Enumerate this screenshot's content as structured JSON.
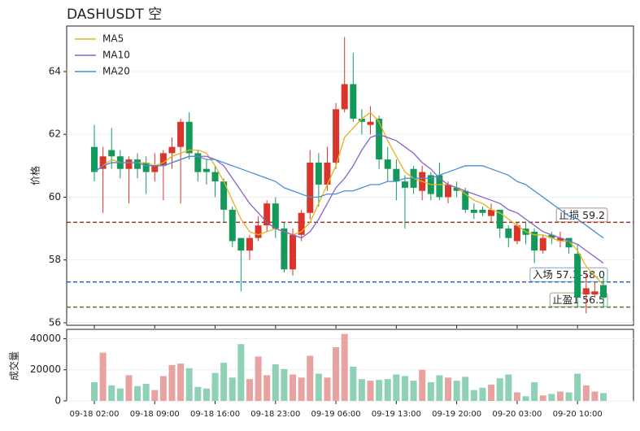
{
  "chart_data": [
    {
      "type": "candlestick",
      "title": "DASHUSDT 空",
      "ylabel": "价格",
      "categories": [
        "09-18 02:00",
        null,
        null,
        null,
        null,
        null,
        null,
        "09-18 09:00",
        null,
        null,
        null,
        null,
        null,
        null,
        "09-18 16:00",
        null,
        null,
        null,
        null,
        null,
        null,
        "09-18 23:00",
        null,
        null,
        null,
        null,
        null,
        null,
        "09-19 06:00",
        null,
        null,
        null,
        null,
        null,
        null,
        "09-19 13:00",
        null,
        null,
        null,
        null,
        null,
        null,
        "09-19 20:00",
        null,
        null,
        null,
        null,
        null,
        null,
        "09-20 03:00",
        null,
        null,
        null,
        null,
        null,
        null,
        "09-20 10:00",
        null,
        null,
        null
      ],
      "open": [
        61.6,
        60.9,
        61.5,
        61.3,
        60.9,
        61.2,
        61.1,
        60.8,
        61.0,
        61.4,
        61.6,
        62.4,
        61.4,
        60.9,
        60.8,
        60.5,
        59.6,
        58.7,
        58.3,
        58.7,
        59.1,
        59.8,
        59.0,
        57.7,
        58.8,
        59.5,
        61.1,
        60.4,
        61.1,
        62.8,
        63.6,
        62.5,
        62.3,
        62.5,
        61.2,
        60.9,
        60.5,
        60.9,
        60.2,
        60.7,
        60.7,
        60.0,
        60.3,
        60.2,
        59.6,
        59.6,
        59.4,
        59.6,
        59.0,
        58.6,
        59.0,
        58.9,
        58.3,
        58.8,
        58.6,
        58.7,
        58.2,
        56.9,
        56.9,
        57.2
      ],
      "high": [
        62.3,
        61.6,
        62.2,
        61.5,
        61.3,
        61.4,
        61.3,
        61.4,
        61.5,
        61.9,
        62.5,
        62.7,
        61.5,
        61.2,
        61.0,
        60.6,
        59.7,
        58.7,
        58.8,
        59.4,
        59.9,
        60.0,
        59.2,
        59.0,
        59.6,
        61.5,
        61.4,
        61.6,
        63.0,
        65.1,
        64.6,
        62.8,
        62.9,
        62.6,
        61.6,
        61.2,
        60.7,
        61.0,
        61.0,
        60.8,
        61.1,
        60.5,
        60.5,
        60.3,
        59.8,
        59.7,
        59.8,
        59.6,
        59.1,
        59.2,
        59.2,
        59.0,
        58.8,
        58.9,
        58.9,
        58.7,
        58.5,
        57.6,
        57.3,
        57.5
      ],
      "low": [
        60.5,
        59.5,
        60.9,
        60.6,
        59.8,
        60.6,
        60.1,
        60.5,
        59.9,
        60.9,
        59.8,
        61.2,
        60.5,
        60.4,
        60.0,
        59.2,
        58.4,
        57.0,
        58.0,
        58.6,
        58.9,
        58.7,
        57.6,
        57.5,
        58.6,
        59.3,
        59.7,
        60.2,
        60.9,
        62.7,
        62.4,
        62.0,
        62.0,
        60.9,
        60.5,
        59.9,
        59.0,
        60.1,
        59.9,
        59.9,
        59.9,
        59.8,
        60.0,
        59.5,
        59.3,
        59.4,
        59.2,
        58.7,
        58.4,
        58.5,
        58.5,
        57.9,
        58.2,
        58.5,
        58.4,
        58.2,
        56.5,
        56.3,
        56.8,
        56.5
      ],
      "close": [
        60.8,
        61.3,
        61.3,
        60.9,
        61.2,
        60.9,
        60.8,
        61.0,
        61.4,
        61.6,
        62.4,
        61.4,
        60.8,
        60.8,
        60.5,
        59.6,
        58.6,
        58.3,
        58.7,
        59.1,
        59.8,
        59.0,
        57.7,
        58.8,
        59.5,
        61.1,
        60.4,
        61.1,
        62.8,
        63.6,
        62.5,
        62.4,
        62.4,
        61.2,
        60.9,
        60.5,
        60.3,
        60.3,
        60.8,
        60.1,
        60.0,
        60.4,
        60.2,
        59.6,
        59.5,
        59.5,
        59.6,
        59.0,
        58.7,
        59.1,
        58.8,
        58.3,
        58.7,
        58.7,
        58.7,
        58.4,
        56.8,
        57.1,
        57.0,
        56.8
      ],
      "up_color": "#d9352a",
      "down_color": "#13995a",
      "series": [
        {
          "name": "MA5",
          "color": "#e8b21a",
          "values": [
            60.8,
            61.0,
            61.2,
            61.1,
            61.1,
            61.1,
            61.1,
            61.0,
            61.1,
            61.3,
            61.4,
            61.5,
            61.5,
            61.4,
            61.0,
            60.5,
            59.9,
            59.3,
            58.9,
            58.8,
            58.9,
            59.0,
            58.9,
            58.8,
            58.9,
            59.2,
            59.8,
            60.4,
            61.0,
            61.9,
            62.2,
            62.5,
            62.7,
            62.4,
            61.8,
            61.3,
            60.8,
            60.6,
            60.5,
            60.4,
            60.4,
            60.4,
            60.3,
            60.1,
            59.9,
            59.8,
            59.6,
            59.5,
            59.3,
            59.1,
            58.9,
            58.8,
            58.8,
            58.7,
            58.6,
            58.6,
            58.3,
            57.8,
            57.5,
            57.2
          ]
        },
        {
          "name": "MA10",
          "color": "#8a63c9",
          "values": [
            60.8,
            61.0,
            61.1,
            61.1,
            61.1,
            61.1,
            61.0,
            61.0,
            61.0,
            61.1,
            61.2,
            61.3,
            61.3,
            61.3,
            61.2,
            61.0,
            60.6,
            60.2,
            59.8,
            59.5,
            59.2,
            59.0,
            58.9,
            58.8,
            58.7,
            58.9,
            59.3,
            59.8,
            60.3,
            60.6,
            61.0,
            61.5,
            61.9,
            62.0,
            61.9,
            61.8,
            61.6,
            61.4,
            61.1,
            60.9,
            60.6,
            60.4,
            60.3,
            60.2,
            60.1,
            60.0,
            59.9,
            59.8,
            59.6,
            59.5,
            59.3,
            59.1,
            58.9,
            58.8,
            58.7,
            58.6,
            58.5,
            58.3,
            58.1,
            57.9
          ]
        },
        {
          "name": "MA20",
          "color": "#4a8fd4",
          "values": [
            60.8,
            61.0,
            61.1,
            61.1,
            61.1,
            61.1,
            61.0,
            61.0,
            61.0,
            61.1,
            61.2,
            61.3,
            61.3,
            61.2,
            61.2,
            61.1,
            61.0,
            60.9,
            60.8,
            60.7,
            60.6,
            60.5,
            60.3,
            60.2,
            60.1,
            60.0,
            60.0,
            60.1,
            60.1,
            60.2,
            60.2,
            60.3,
            60.4,
            60.4,
            60.5,
            60.5,
            60.6,
            60.6,
            60.6,
            60.6,
            60.7,
            60.8,
            60.9,
            61.0,
            61.0,
            61.0,
            60.9,
            60.8,
            60.7,
            60.5,
            60.4,
            60.2,
            60.0,
            59.8,
            59.6,
            59.4,
            59.3,
            59.1,
            58.9,
            58.7
          ]
        }
      ],
      "levels": [
        {
          "label": "止损 59.2",
          "value": 59.2,
          "color": "#8b3a2e"
        },
        {
          "label": "入场 57.3-58.0",
          "value": 57.3,
          "color": "#2e6da4"
        },
        {
          "label": "止盈1 56.5",
          "value": 56.5,
          "color": "#4f7a28"
        }
      ],
      "ylim": [
        55.92,
        65.45
      ],
      "yticks": [
        56,
        58,
        60,
        62,
        64
      ],
      "legend": "upper left",
      "grid": true
    },
    {
      "type": "bar",
      "ylabel": "成交量",
      "values": [
        12000,
        31000,
        10000,
        8000,
        16500,
        9500,
        11000,
        7000,
        16000,
        23000,
        24000,
        21000,
        9000,
        8000,
        18000,
        24500,
        15000,
        36500,
        14000,
        28500,
        16500,
        23500,
        20500,
        17000,
        15000,
        29000,
        17500,
        15000,
        34500,
        43000,
        22000,
        14000,
        13000,
        13500,
        14000,
        17000,
        16000,
        13000,
        20000,
        12000,
        16500,
        15000,
        13000,
        15500,
        7000,
        8500,
        10500,
        14500,
        17000,
        5500,
        3000,
        12000,
        3500,
        4500,
        6000,
        5500,
        17500,
        10000,
        6000,
        5000
      ],
      "up_color": "#e8a3a0",
      "down_color": "#8fd1b4",
      "ylim": [
        0,
        46000
      ],
      "yticks": [
        0,
        20000,
        40000
      ],
      "grid": true
    }
  ]
}
